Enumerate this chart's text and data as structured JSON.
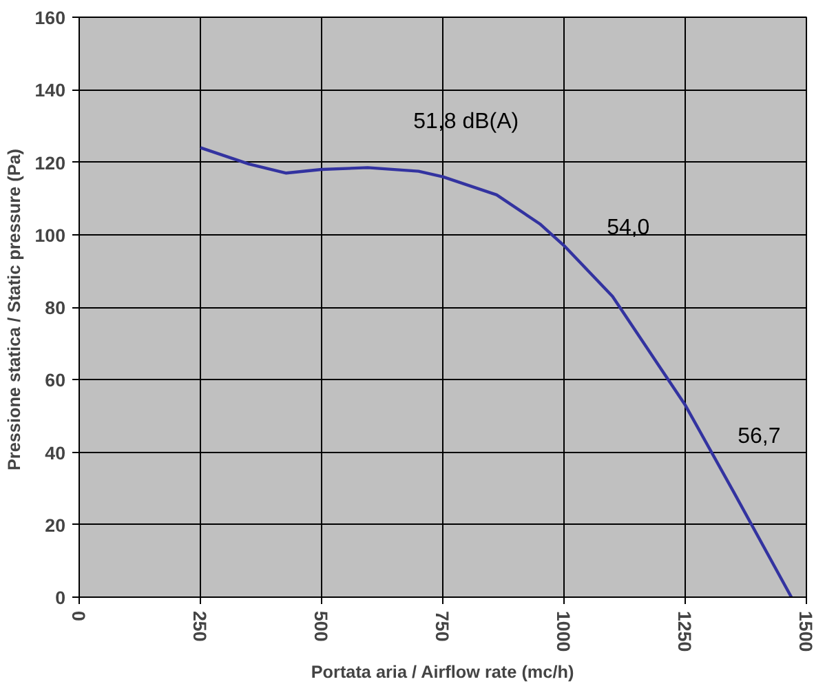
{
  "chart_data": {
    "type": "line",
    "xlabel": "Portata aria / Airflow rate (mc/h)",
    "ylabel": "Pressione statica / Static pressure  (Pa)",
    "x": [
      250,
      350,
      427,
      500,
      595,
      700,
      750,
      861,
      950,
      1000,
      1100,
      1200,
      1250,
      1350,
      1469
    ],
    "series": [
      {
        "color": "#3333a0",
        "values": [
          124,
          119.5,
          117,
          118,
          118.5,
          117.5,
          116,
          111,
          103,
          97,
          83,
          63,
          53,
          29,
          0
        ]
      }
    ],
    "xlim": [
      0,
      1500
    ],
    "xticks": [
      0,
      250,
      500,
      750,
      1000,
      1250,
      1500
    ],
    "ylim": [
      0,
      160
    ],
    "yticks": [
      0,
      20,
      40,
      60,
      80,
      100,
      120,
      140,
      160
    ],
    "grid": true,
    "marker": "none",
    "line_style": "solid",
    "annotations": [
      "51,8 dB(A)",
      "54,0",
      "56,7"
    ]
  }
}
